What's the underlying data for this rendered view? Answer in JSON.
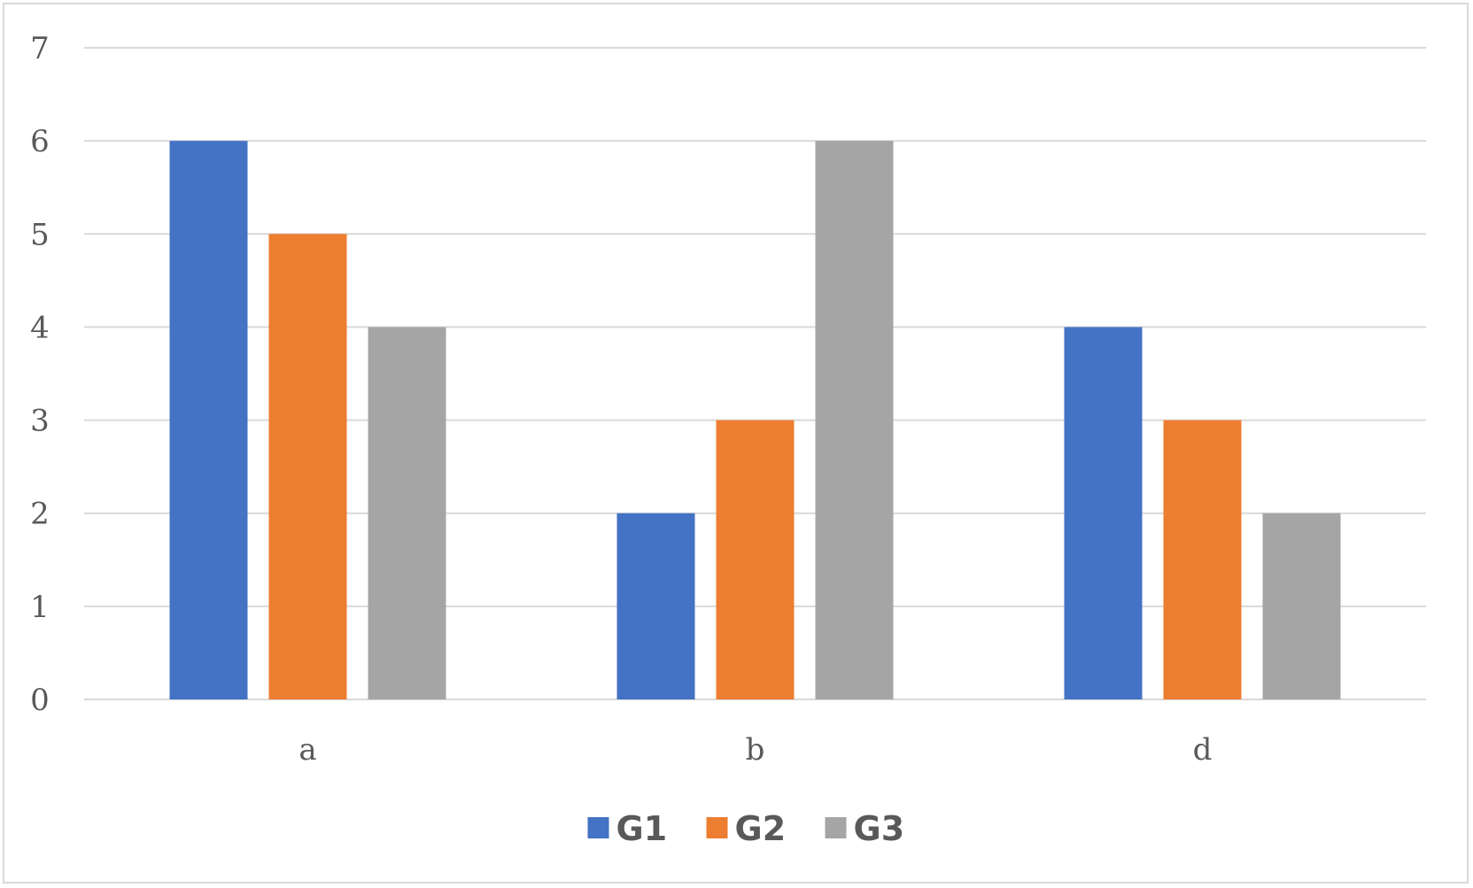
{
  "chart_data": {
    "type": "bar",
    "title": "",
    "xlabel": "",
    "ylabel": "",
    "categories": [
      "a",
      "b",
      "d"
    ],
    "series": [
      {
        "name": "G1",
        "values": [
          6,
          2,
          4
        ],
        "color": "#4472c4"
      },
      {
        "name": "G2",
        "values": [
          5,
          3,
          3
        ],
        "color": "#ed7d31"
      },
      {
        "name": "G3",
        "values": [
          4,
          6,
          2
        ],
        "color": "#a5a5a5"
      }
    ],
    "ylim": [
      0,
      7
    ],
    "yticks": [
      0,
      1,
      2,
      3,
      4,
      5,
      6,
      7
    ],
    "grid": true,
    "grid_color": "#d9d9d9",
    "legend": "bottom-center"
  }
}
